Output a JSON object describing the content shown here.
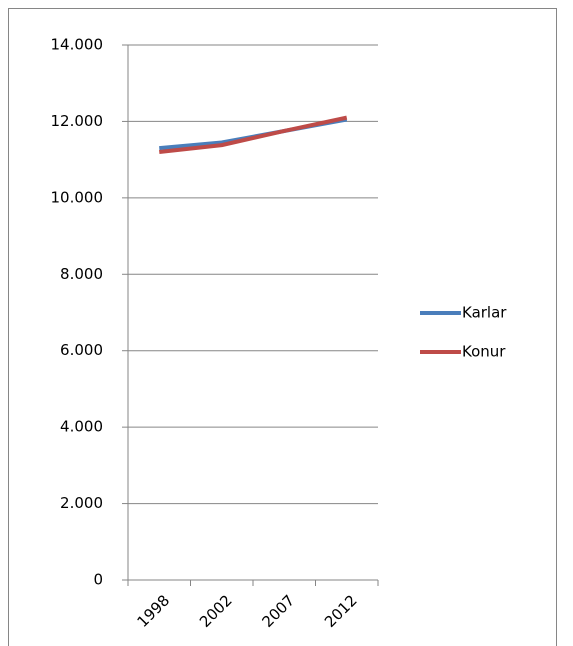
{
  "chart_data": {
    "type": "line",
    "categories": [
      "1998",
      "2002",
      "2007",
      "2012"
    ],
    "series": [
      {
        "name": "Karlar",
        "color": "#4a7ebb",
        "values": [
          11300,
          11450,
          11750,
          12050
        ]
      },
      {
        "name": "Konur",
        "color": "#be4b48",
        "values": [
          11200,
          11380,
          11750,
          12100
        ]
      }
    ],
    "ylim": [
      0,
      14000
    ],
    "yticks": [
      0,
      {
        "value": 2000,
        "label": "2.000"
      },
      {
        "value": 4000,
        "label": "4.000"
      },
      {
        "value": 6000,
        "label": "6.000"
      },
      {
        "value": 8000,
        "label": "8.000"
      },
      {
        "value": 10000,
        "label": "10.000"
      },
      {
        "value": 12000,
        "label": "12.000"
      },
      {
        "value": 14000,
        "label": "14.000"
      }
    ],
    "grid": true,
    "legend": "right"
  }
}
